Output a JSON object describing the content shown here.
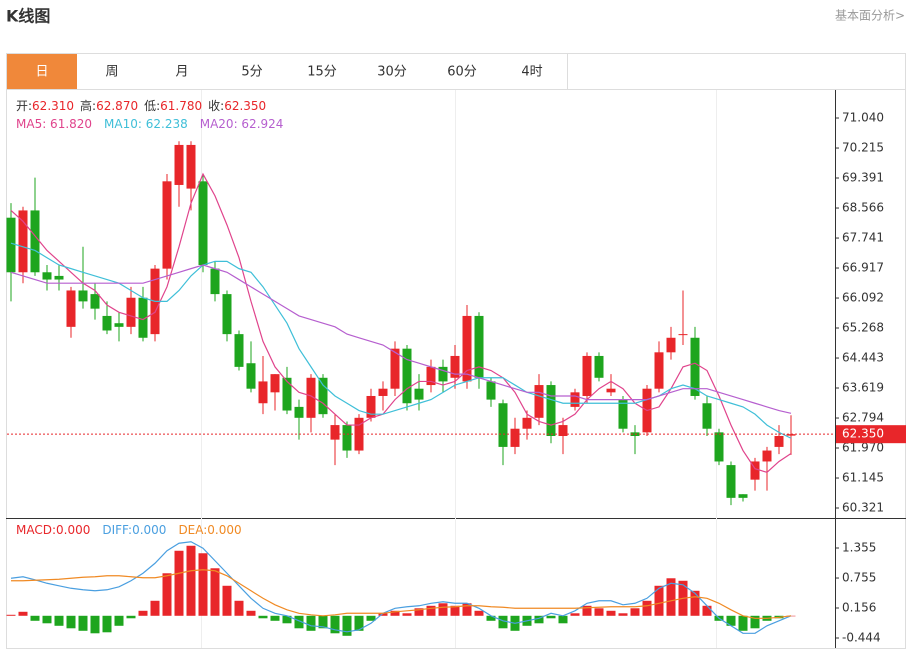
{
  "header": {
    "title": "K线图",
    "link": "基本面分析>"
  },
  "tabs": [
    "日",
    "周",
    "月",
    "5分",
    "15分",
    "30分",
    "60分",
    "4时"
  ],
  "active_tab": 0,
  "chart_data": [
    {
      "type": "candlestick",
      "info": [
        {
          "label": "开:",
          "value": "62.310"
        },
        {
          "label": "高:",
          "value": "62.870"
        },
        {
          "label": "低:",
          "value": "61.780"
        },
        {
          "label": "收:",
          "value": "62.350"
        }
      ],
      "up_color": "#e8262a",
      "down_color": "#1ea51e",
      "candles": {
        "open": [
          68.3,
          66.8,
          68.5,
          66.8,
          66.7,
          65.3,
          66.3,
          66.2,
          65.6,
          65.4,
          65.3,
          66.1,
          65.1,
          66.9,
          69.2,
          69.1,
          69.3,
          66.9,
          66.2,
          65.1,
          64.3,
          63.2,
          63.5,
          63.9,
          63.1,
          62.8,
          63.9,
          62.2,
          62.6,
          61.9,
          62.8,
          63.4,
          63.6,
          64.7,
          63.6,
          63.7,
          64.2,
          63.9,
          63.8,
          65.6,
          63.8,
          63.2,
          62.0,
          62.5,
          62.8,
          63.7,
          62.3,
          63.1,
          63.4,
          64.5,
          63.5,
          63.3,
          62.4,
          62.4,
          63.6,
          64.6,
          65.1,
          65.0,
          63.2,
          62.4,
          61.5,
          60.7,
          61.1,
          61.6,
          62.0,
          62.31
        ],
        "high": [
          68.7,
          68.6,
          69.4,
          67.0,
          67.0,
          66.4,
          67.5,
          66.5,
          66.0,
          65.7,
          66.4,
          66.4,
          67.0,
          69.5,
          70.4,
          70.4,
          69.5,
          67.1,
          66.3,
          65.2,
          64.9,
          64.5,
          64.0,
          64.2,
          63.3,
          64.0,
          64.0,
          62.9,
          62.7,
          62.9,
          63.6,
          63.8,
          64.9,
          64.8,
          64.0,
          64.4,
          64.4,
          64.8,
          65.9,
          65.7,
          63.9,
          63.3,
          62.8,
          63.0,
          64.0,
          63.8,
          62.8,
          63.6,
          64.6,
          64.6,
          64.0,
          63.4,
          62.6,
          63.7,
          64.9,
          65.3,
          66.3,
          65.3,
          63.4,
          62.5,
          61.6,
          60.7,
          61.7,
          62.0,
          62.6,
          62.87
        ],
        "low": [
          66.0,
          66.5,
          66.7,
          66.3,
          66.3,
          65.0,
          65.8,
          65.5,
          65.1,
          64.9,
          65.1,
          64.9,
          64.9,
          66.6,
          68.6,
          68.5,
          66.8,
          66.0,
          64.9,
          64.1,
          63.5,
          62.9,
          63.0,
          62.9,
          62.2,
          62.4,
          62.8,
          61.5,
          61.7,
          61.8,
          62.7,
          63.0,
          63.4,
          63.0,
          63.0,
          63.5,
          63.5,
          63.6,
          63.6,
          63.6,
          63.1,
          61.5,
          61.8,
          62.2,
          62.6,
          62.1,
          61.8,
          63.0,
          63.2,
          63.8,
          63.4,
          62.4,
          61.8,
          62.3,
          63.5,
          64.4,
          64.8,
          63.3,
          62.3,
          61.5,
          60.4,
          60.5,
          60.8,
          60.8,
          61.8,
          61.78
        ],
        "close": [
          66.8,
          68.5,
          66.8,
          66.6,
          66.6,
          66.3,
          66.0,
          65.8,
          65.2,
          65.3,
          66.1,
          65.0,
          66.9,
          69.3,
          70.3,
          70.3,
          67.0,
          66.2,
          65.1,
          64.2,
          63.6,
          63.8,
          64.0,
          63.0,
          62.8,
          63.9,
          62.9,
          62.6,
          61.9,
          62.8,
          63.4,
          63.6,
          64.7,
          63.2,
          63.3,
          64.2,
          63.8,
          64.5,
          65.6,
          63.9,
          63.3,
          62.0,
          62.5,
          62.8,
          63.7,
          62.3,
          62.6,
          63.5,
          64.5,
          63.9,
          63.6,
          62.5,
          62.3,
          63.6,
          64.6,
          65.0,
          65.1,
          63.4,
          62.5,
          61.6,
          60.6,
          60.6,
          61.6,
          61.9,
          62.3,
          62.35
        ]
      },
      "series": [
        {
          "label": "MA5: 61.820",
          "color": "#e0448c",
          "values": [
            68.5,
            68.2,
            67.8,
            67.4,
            67.1,
            66.8,
            66.5,
            66.3,
            65.9,
            65.7,
            65.6,
            65.5,
            65.7,
            66.4,
            67.5,
            68.7,
            69.5,
            68.9,
            68.1,
            67.2,
            66.0,
            64.9,
            64.2,
            63.8,
            63.5,
            63.4,
            63.2,
            62.9,
            62.6,
            62.6,
            62.8,
            62.9,
            63.3,
            63.6,
            63.8,
            63.8,
            63.7,
            63.8,
            64.1,
            64.2,
            64.1,
            63.9,
            63.5,
            62.9,
            62.7,
            62.6,
            62.7,
            62.9,
            63.3,
            63.6,
            63.8,
            63.6,
            63.2,
            63.0,
            63.1,
            63.6,
            64.2,
            64.3,
            64.1,
            63.4,
            62.6,
            61.9,
            61.4,
            61.3,
            61.6,
            61.82
          ]
        },
        {
          "label": "MA10: 62.238",
          "color": "#3fbfd8",
          "values": [
            67.6,
            67.5,
            67.4,
            67.2,
            67.0,
            66.9,
            66.8,
            66.7,
            66.6,
            66.5,
            66.3,
            66.1,
            66.0,
            66.0,
            66.3,
            66.7,
            67.0,
            67.1,
            67.1,
            66.9,
            66.8,
            66.4,
            65.9,
            65.4,
            64.7,
            64.2,
            63.7,
            63.4,
            63.2,
            63.0,
            62.9,
            62.9,
            63.0,
            63.1,
            63.2,
            63.3,
            63.5,
            63.7,
            63.8,
            63.9,
            63.9,
            63.9,
            63.7,
            63.5,
            63.4,
            63.3,
            63.2,
            63.2,
            63.2,
            63.2,
            63.2,
            63.2,
            63.2,
            63.3,
            63.4,
            63.6,
            63.7,
            63.6,
            63.4,
            63.3,
            63.2,
            63.1,
            62.9,
            62.6,
            62.4,
            62.238
          ]
        },
        {
          "label": "MA20: 62.924",
          "color": "#b65fcf",
          "values": [
            66.8,
            66.7,
            66.6,
            66.5,
            66.5,
            66.5,
            66.5,
            66.5,
            66.5,
            66.5,
            66.5,
            66.5,
            66.6,
            66.7,
            66.8,
            66.9,
            67.0,
            66.9,
            66.8,
            66.6,
            66.4,
            66.2,
            66.0,
            65.8,
            65.6,
            65.5,
            65.4,
            65.3,
            65.1,
            65.0,
            64.9,
            64.8,
            64.6,
            64.4,
            64.3,
            64.2,
            64.1,
            64.0,
            64.0,
            63.9,
            63.8,
            63.7,
            63.6,
            63.5,
            63.5,
            63.4,
            63.4,
            63.4,
            63.3,
            63.3,
            63.3,
            63.3,
            63.3,
            63.3,
            63.4,
            63.5,
            63.6,
            63.6,
            63.6,
            63.5,
            63.4,
            63.3,
            63.2,
            63.1,
            63.0,
            62.924
          ]
        }
      ],
      "last_price": {
        "value": 62.35,
        "label": "62.350"
      },
      "ylim": [
        60.046,
        71.81
      ],
      "yticks": [
        {
          "value": 71.04,
          "label": "71.040"
        },
        {
          "value": 70.215,
          "label": "70.215"
        },
        {
          "value": 69.391,
          "label": "69.391"
        },
        {
          "value": 68.566,
          "label": "68.566"
        },
        {
          "value": 67.741,
          "label": "67.741"
        },
        {
          "value": 66.917,
          "label": "66.917"
        },
        {
          "value": 66.092,
          "label": "66.092"
        },
        {
          "value": 65.268,
          "label": "65.268"
        },
        {
          "value": 64.443,
          "label": "64.443"
        },
        {
          "value": 63.619,
          "label": "63.619"
        },
        {
          "value": 62.794,
          "label": "62.794"
        },
        {
          "value": 61.97,
          "label": "61.970"
        },
        {
          "value": 61.145,
          "label": "61.145"
        },
        {
          "value": 60.321,
          "label": "60.321"
        }
      ]
    },
    {
      "type": "macd",
      "series": [
        {
          "label": "MACD:0.000",
          "color": "#e8262a",
          "values": [
            0.02,
            0.08,
            -0.1,
            -0.15,
            -0.2,
            -0.25,
            -0.3,
            -0.35,
            -0.33,
            -0.2,
            -0.05,
            0.1,
            0.3,
            0.85,
            1.3,
            1.4,
            1.25,
            0.95,
            0.6,
            0.3,
            0.1,
            -0.05,
            -0.1,
            -0.15,
            -0.25,
            -0.3,
            -0.25,
            -0.35,
            -0.4,
            -0.3,
            -0.1,
            0.05,
            0.1,
            0.05,
            0.15,
            0.2,
            0.25,
            0.2,
            0.25,
            0.1,
            -0.1,
            -0.25,
            -0.3,
            -0.2,
            -0.15,
            -0.05,
            -0.15,
            0.05,
            0.2,
            0.15,
            0.1,
            0.05,
            0.15,
            0.3,
            0.6,
            0.75,
            0.7,
            0.5,
            0.2,
            -0.1,
            -0.2,
            -0.3,
            -0.25,
            -0.1,
            -0.05,
            0.0
          ]
        },
        {
          "label": "DIFF:0.000",
          "color": "#4a9fe0",
          "values": [
            0.75,
            0.78,
            0.72,
            0.65,
            0.6,
            0.55,
            0.52,
            0.5,
            0.52,
            0.58,
            0.7,
            0.85,
            1.05,
            1.3,
            1.45,
            1.48,
            1.35,
            1.1,
            0.85,
            0.6,
            0.35,
            0.15,
            0.05,
            0.0,
            -0.1,
            -0.2,
            -0.22,
            -0.28,
            -0.32,
            -0.28,
            -0.15,
            0.05,
            0.15,
            0.18,
            0.2,
            0.25,
            0.28,
            0.25,
            0.25,
            0.15,
            0.0,
            -0.1,
            -0.15,
            -0.1,
            -0.05,
            0.05,
            0.0,
            0.1,
            0.25,
            0.3,
            0.3,
            0.22,
            0.25,
            0.35,
            0.55,
            0.65,
            0.62,
            0.45,
            0.2,
            -0.05,
            -0.2,
            -0.35,
            -0.35,
            -0.2,
            -0.1,
            0.0
          ]
        },
        {
          "label": "DEA:0.000",
          "color": "#f08a24",
          "values": [
            0.7,
            0.7,
            0.71,
            0.72,
            0.73,
            0.75,
            0.77,
            0.78,
            0.8,
            0.8,
            0.78,
            0.76,
            0.76,
            0.8,
            0.85,
            0.9,
            0.92,
            0.9,
            0.8,
            0.65,
            0.5,
            0.35,
            0.22,
            0.12,
            0.05,
            0.02,
            0.0,
            0.02,
            0.05,
            0.05,
            0.05,
            0.05,
            0.08,
            0.1,
            0.12,
            0.15,
            0.17,
            0.18,
            0.2,
            0.2,
            0.18,
            0.17,
            0.15,
            0.15,
            0.15,
            0.15,
            0.15,
            0.15,
            0.16,
            0.17,
            0.18,
            0.18,
            0.18,
            0.2,
            0.25,
            0.3,
            0.35,
            0.38,
            0.35,
            0.25,
            0.12,
            0.0,
            -0.05,
            -0.05,
            -0.03,
            0.0
          ]
        }
      ],
      "ylim": [
        -0.644,
        1.915
      ],
      "yticks": [
        {
          "value": 1.355,
          "label": "1.355"
        },
        {
          "value": 0.755,
          "label": "0.755"
        },
        {
          "value": 0.156,
          "label": "0.156"
        },
        {
          "value": -0.444,
          "label": "-0.444"
        }
      ]
    }
  ]
}
